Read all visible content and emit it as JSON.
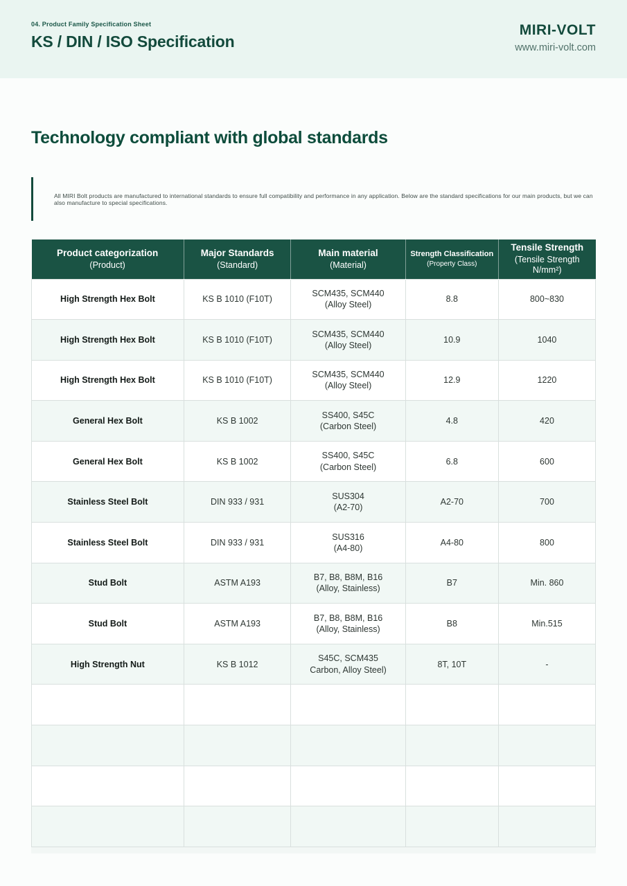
{
  "page": {
    "eyebrow": "04. Product Family Specification Sheet",
    "title": "KS / DIN / ISO Specification",
    "brand": "MIRI-VOLT",
    "website": "www.miri-volt.com",
    "section_heading": "Technology compliant with global standards",
    "intro": "All MIRI Bolt products are manufactured to international standards to ensure full compatibility and performance in any application. Below are the standard specifications for our main products, but we can also manufacture to special specifications."
  },
  "colors": {
    "banner_bg": "#eaf5f1",
    "brand_green": "#134a3c",
    "table_header_bg": "#1a5344",
    "row_alt_bg": "#f1f8f5",
    "border_grey": "#d9e0de"
  },
  "table": {
    "columns": [
      {
        "title": "Product categorization",
        "subtitle": "(Product)"
      },
      {
        "title": "Major Standards",
        "subtitle": "(Standard)"
      },
      {
        "title": "Main material",
        "subtitle": "(Material)"
      },
      {
        "title": "Strength Classification",
        "subtitle": "(Property Class)"
      },
      {
        "title": "Tensile Strength",
        "subtitle": "(Tensile Strength\nN/mm²)"
      }
    ],
    "rows": [
      {
        "product": "High Strength Hex Bolt",
        "standard": "KS B 1010 (F10T)",
        "material": "SCM435, SCM440\n(Alloy Steel)",
        "class": "8.8",
        "tensile": "800~830"
      },
      {
        "product": "High Strength Hex Bolt",
        "standard": "KS B 1010 (F10T)",
        "material": "SCM435, SCM440\n(Alloy Steel)",
        "class": "10.9",
        "tensile": "1040"
      },
      {
        "product": "High Strength Hex Bolt",
        "standard": "KS B 1010 (F10T)",
        "material": "SCM435, SCM440\n(Alloy Steel)",
        "class": "12.9",
        "tensile": "1220"
      },
      {
        "product": "General Hex Bolt",
        "standard": "KS B 1002",
        "material": "SS400, S45C\n(Carbon Steel)",
        "class": "4.8",
        "tensile": "420"
      },
      {
        "product": "General Hex Bolt",
        "standard": "KS B 1002",
        "material": "SS400, S45C\n(Carbon Steel)",
        "class": "6.8",
        "tensile": "600"
      },
      {
        "product": "Stainless Steel Bolt",
        "standard": "DIN 933 / 931",
        "material": "SUS304\n(A2-70)",
        "class": "A2-70",
        "tensile": "700"
      },
      {
        "product": "Stainless Steel Bolt",
        "standard": "DIN 933 / 931",
        "material": "SUS316\n(A4-80)",
        "class": "A4-80",
        "tensile": "800"
      },
      {
        "product": "Stud Bolt",
        "standard": "ASTM A193",
        "material": "B7, B8, B8M, B16\n(Alloy, Stainless)",
        "class": "B7",
        "tensile": "Min. 860"
      },
      {
        "product": "Stud Bolt",
        "standard": "ASTM A193",
        "material": "B7, B8, B8M, B16\n(Alloy, Stainless)",
        "class": "B8",
        "tensile": "Min.515"
      },
      {
        "product": "High Strength Nut",
        "standard": "KS B 1012",
        "material": "S45C, SCM435\nCarbon, Alloy Steel)",
        "class": "8T, 10T",
        "tensile": "-"
      },
      {
        "product": "",
        "standard": "",
        "material": "",
        "class": "",
        "tensile": ""
      },
      {
        "product": "",
        "standard": "",
        "material": "",
        "class": "",
        "tensile": ""
      },
      {
        "product": "",
        "standard": "",
        "material": "",
        "class": "",
        "tensile": ""
      },
      {
        "product": "",
        "standard": "",
        "material": "",
        "class": "",
        "tensile": ""
      }
    ]
  }
}
